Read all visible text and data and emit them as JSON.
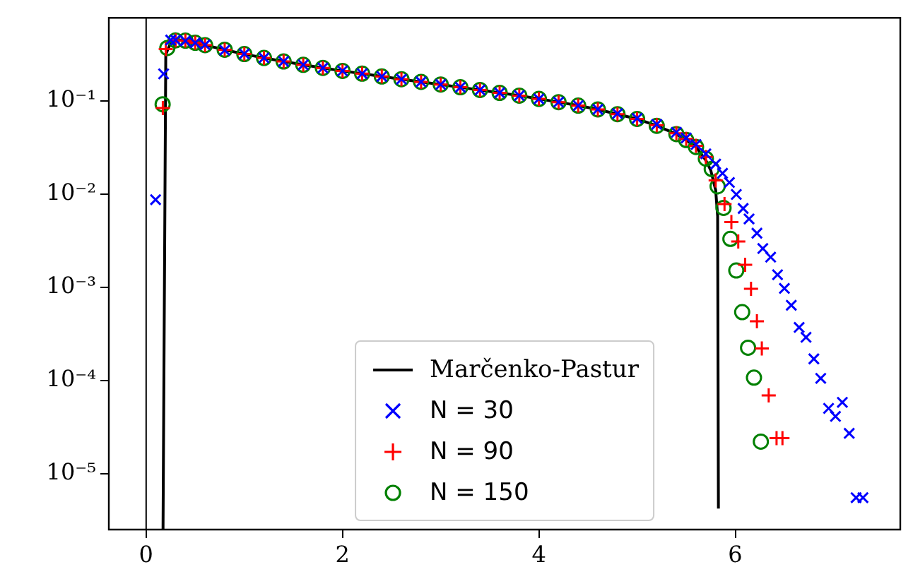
{
  "chart_data": {
    "type": "scatter",
    "xlim": [
      -0.38,
      7.68
    ],
    "xticks": [
      0,
      2,
      4,
      6
    ],
    "ylim": [
      2.5e-06,
      0.78
    ],
    "yticks": [
      {
        "value": 0.1,
        "label": "10⁻¹"
      },
      {
        "value": 0.01,
        "label": "10⁻²"
      },
      {
        "value": 0.001,
        "label": "10⁻³"
      },
      {
        "value": 0.0001,
        "label": "10⁻⁴"
      },
      {
        "value": 1e-05,
        "label": "10⁻⁵"
      }
    ],
    "log": "y",
    "grid": false,
    "legend": "bottom",
    "ref_lines": [
      {
        "axis": "x",
        "value": 0,
        "color": "#000000"
      }
    ],
    "series": [
      {
        "name": "Marčenko-Pastur",
        "type": "line",
        "color": "#000000",
        "marker": "none",
        "line_style": "solid",
        "x": [
          0.172,
          0.2,
          0.25,
          0.3,
          0.35,
          0.4,
          0.5,
          0.6,
          0.8,
          1.0,
          1.2,
          1.4,
          1.6,
          1.8,
          2.0,
          2.2,
          2.4,
          2.6,
          2.8,
          3.0,
          3.2,
          3.4,
          3.6,
          3.8,
          4.0,
          4.2,
          4.4,
          4.6,
          4.8,
          5.0,
          5.2,
          5.4,
          5.5,
          5.6,
          5.7,
          5.75,
          5.8,
          5.82,
          5.828
        ],
        "values": [
          2.5e-06,
          0.316,
          0.42,
          0.446,
          0.449,
          0.443,
          0.421,
          0.397,
          0.354,
          0.318,
          0.289,
          0.265,
          0.244,
          0.226,
          0.21,
          0.196,
          0.183,
          0.171,
          0.16,
          0.15,
          0.14,
          0.131,
          0.122,
          0.114,
          0.105,
          0.097,
          0.089,
          0.081,
          0.072,
          0.064,
          0.054,
          0.044,
          0.038,
          0.032,
          0.023,
          0.018,
          0.011,
          0.0058,
          4.2e-06
        ]
      },
      {
        "name": "N = 30",
        "type": "scatter",
        "color": "#0000ff",
        "marker": "x",
        "x": [
          0.096,
          0.178,
          0.25,
          0.3,
          0.4,
          0.5,
          0.6,
          0.8,
          1.0,
          1.2,
          1.4,
          1.6,
          1.8,
          2.0,
          2.2,
          2.4,
          2.6,
          2.8,
          3.0,
          3.2,
          3.4,
          3.6,
          3.8,
          4.0,
          4.2,
          4.4,
          4.6,
          4.8,
          5.0,
          5.2,
          5.4,
          5.5,
          5.6,
          5.7,
          5.8,
          5.87,
          5.94,
          6.01,
          6.08,
          6.14,
          6.22,
          6.28,
          6.36,
          6.43,
          6.5,
          6.57,
          6.65,
          6.72,
          6.8,
          6.87,
          6.95,
          7.02,
          7.09,
          7.16,
          7.23,
          7.3
        ],
        "values": [
          0.0087,
          0.195,
          0.45,
          0.45,
          0.44,
          0.42,
          0.4,
          0.35,
          0.32,
          0.29,
          0.265,
          0.244,
          0.226,
          0.21,
          0.196,
          0.183,
          0.171,
          0.16,
          0.15,
          0.14,
          0.131,
          0.122,
          0.114,
          0.105,
          0.097,
          0.089,
          0.081,
          0.073,
          0.065,
          0.056,
          0.046,
          0.04,
          0.034,
          0.027,
          0.021,
          0.0167,
          0.0133,
          0.0099,
          0.007,
          0.0054,
          0.0038,
          0.0026,
          0.0021,
          0.00136,
          0.00097,
          0.00064,
          0.00037,
          0.00029,
          0.00017,
          0.000105,
          5e-05,
          4.1e-05,
          5.8e-05,
          2.7e-05,
          5.5e-06,
          5.5e-06
        ]
      },
      {
        "name": "N = 90",
        "type": "scatter",
        "color": "#ff0000",
        "marker": "cross",
        "x": [
          0.17,
          0.2,
          0.3,
          0.4,
          0.5,
          0.6,
          0.8,
          1.0,
          1.2,
          1.4,
          1.6,
          1.8,
          2.0,
          2.2,
          2.4,
          2.6,
          2.8,
          3.0,
          3.2,
          3.4,
          3.6,
          3.8,
          4.0,
          4.2,
          4.4,
          4.6,
          4.8,
          5.0,
          5.2,
          5.4,
          5.5,
          5.6,
          5.7,
          5.8,
          5.89,
          5.96,
          6.03,
          6.1,
          6.16,
          6.22,
          6.27,
          6.34,
          6.42,
          6.48
        ],
        "values": [
          0.084,
          0.36,
          0.446,
          0.443,
          0.421,
          0.397,
          0.354,
          0.318,
          0.289,
          0.265,
          0.244,
          0.226,
          0.21,
          0.196,
          0.183,
          0.171,
          0.16,
          0.15,
          0.14,
          0.131,
          0.122,
          0.114,
          0.105,
          0.097,
          0.089,
          0.081,
          0.072,
          0.064,
          0.055,
          0.045,
          0.039,
          0.033,
          0.025,
          0.014,
          0.0078,
          0.005,
          0.0031,
          0.00174,
          0.00096,
          0.00043,
          0.00022,
          6.9e-05,
          2.4e-05,
          2.4e-05
        ]
      },
      {
        "name": "N = 150",
        "type": "scatter",
        "color": "#008000",
        "marker": "circle",
        "x": [
          0.168,
          0.216,
          0.3,
          0.4,
          0.5,
          0.6,
          0.8,
          1.0,
          1.2,
          1.4,
          1.6,
          1.8,
          2.0,
          2.2,
          2.4,
          2.6,
          2.8,
          3.0,
          3.2,
          3.4,
          3.6,
          3.8,
          4.0,
          4.2,
          4.4,
          4.6,
          4.8,
          5.0,
          5.2,
          5.4,
          5.5,
          5.6,
          5.7,
          5.76,
          5.82,
          5.88,
          5.95,
          6.01,
          6.07,
          6.13,
          6.19,
          6.26
        ],
        "values": [
          0.092,
          0.37,
          0.446,
          0.443,
          0.421,
          0.397,
          0.354,
          0.318,
          0.289,
          0.265,
          0.244,
          0.226,
          0.21,
          0.196,
          0.183,
          0.171,
          0.16,
          0.15,
          0.14,
          0.131,
          0.122,
          0.114,
          0.105,
          0.097,
          0.089,
          0.081,
          0.072,
          0.064,
          0.054,
          0.044,
          0.038,
          0.032,
          0.024,
          0.0186,
          0.0121,
          0.0071,
          0.0033,
          0.00151,
          0.00054,
          0.000224,
          0.000107,
          2.2e-05
        ]
      }
    ]
  }
}
